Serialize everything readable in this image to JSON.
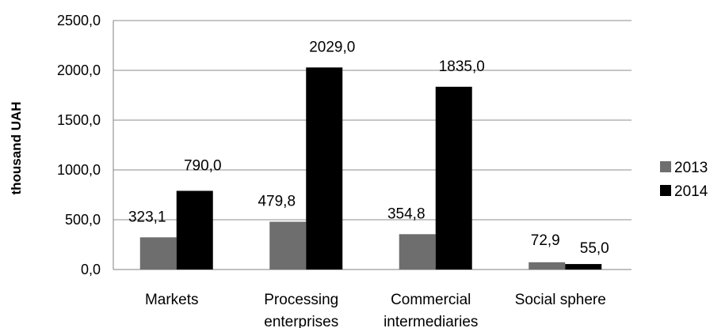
{
  "chart_data": {
    "type": "bar",
    "title": "",
    "xlabel": "",
    "ylabel": "thousand UAH",
    "categories": [
      [
        "Markets"
      ],
      [
        "Processing",
        "enterprises"
      ],
      [
        "Commercial",
        "intermediaries"
      ],
      [
        "Social sphere"
      ]
    ],
    "series": [
      {
        "name": "2013",
        "color": "#6e6e6e",
        "values": [
          323.1,
          479.8,
          354.8,
          72.9
        ],
        "labels": [
          "323,1",
          "479,8",
          "354,8",
          "72,9"
        ]
      },
      {
        "name": "2014",
        "color": "#000000",
        "values": [
          790.0,
          2029.0,
          1835.0,
          55.0
        ],
        "labels": [
          "790,0",
          "2029,0",
          "1835,0",
          "55,0"
        ]
      }
    ],
    "ylim": [
      0,
      2500
    ],
    "yticks": [
      0,
      500,
      1000,
      1500,
      2000,
      2500
    ],
    "ytick_labels": [
      "0,0",
      "500,0",
      "1000,0",
      "1500,0",
      "2000,0",
      "2500,0"
    ],
    "grid": true,
    "legend_position": "right"
  }
}
